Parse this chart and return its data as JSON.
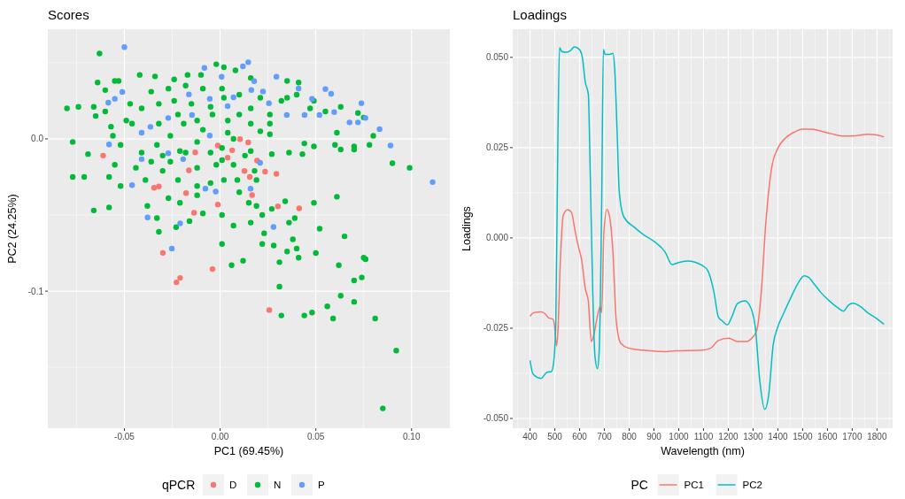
{
  "chart_data": [
    {
      "type": "scatter",
      "title": "Scores",
      "xlabel": "PC1 (69.45%)",
      "ylabel": "PC2 (24.25%)",
      "legend_title": "qPCR",
      "legend": "bottom",
      "grid": true,
      "marker": "circle",
      "xlim": [
        -0.09,
        0.12
      ],
      "ylim": [
        -0.19,
        0.072
      ],
      "xticks": [
        {
          "value": -0.05,
          "label": "-0.05"
        },
        {
          "value": 0,
          "label": "0.00"
        },
        {
          "value": 0.05,
          "label": "0.05"
        },
        {
          "value": 0.1,
          "label": "0.10"
        }
      ],
      "yticks": [
        {
          "value": -0.1,
          "label": "-0.1"
        },
        {
          "value": 0,
          "label": "0.0"
        }
      ],
      "series": [
        {
          "name": "D",
          "color": "#f8766d",
          "x": [
            -0.0611,
            -0.0299,
            -0.0228,
            -0.0209,
            -0.004,
            0.0257,
            0.0413,
            0.0302,
            0.0294,
            0.0235,
            0.0147,
            0.0104,
            -0.0012,
            0.0039,
            0.0063,
            0.0127,
            0.0155,
            0.0167,
            0.0193,
            -0.0136,
            -0.0178,
            -0.0345,
            -0.032,
            -0.013,
            -0.0163,
            -0.0012
          ],
          "values": [
            -0.011,
            -0.0749,
            -0.0942,
            -0.0913,
            -0.0855,
            -0.1124,
            -0.0456,
            -0.0443,
            -0.023,
            -0.0215,
            -0.0023,
            -0.0002,
            -0.0044,
            -0.0124,
            -0.0075,
            -0.0211,
            -0.025,
            -0.0369,
            -0.0143,
            -0.0485,
            -0.0356,
            -0.0321,
            -0.0313,
            -0.0089,
            -0.0207,
            -0.0431
          ]
        },
        {
          "name": "N",
          "color": "#00ba38",
          "x": [
            -0.063,
            -0.08,
            -0.074,
            -0.066,
            -0.077,
            -0.069,
            -0.077,
            -0.071,
            -0.066,
            -0.058,
            -0.058,
            -0.052,
            -0.055,
            -0.064,
            -0.06,
            -0.055,
            -0.053,
            -0.065,
            -0.06,
            -0.056,
            -0.057,
            -0.052,
            -0.049,
            -0.046,
            -0.042,
            -0.034,
            -0.024,
            -0.017,
            -0.01,
            -0.002,
            0.002,
            0.008,
            0.016,
            0.035,
            0.041,
            0.049,
            0.063,
            0.072,
            0.075,
            0.061,
            0.08,
            0.078,
            0.07,
            0.07,
            0.06,
            0.063,
            0.049,
            0.044,
            0.043,
            0.036,
            0.027,
            0.026,
            0.021,
            0.09,
            0.099,
            0.061,
            0.049,
            0.052,
            0.065,
            0.034,
            0.039,
            0.036,
            0.038,
            0.04,
            0.035,
            0.041,
            0.05,
            0.062,
            0.075,
            0.076,
            0.07,
            0.074,
            0.063,
            0.07,
            0.056,
            0.048,
            0.044,
            0.059,
            0.081,
            0.032,
            0.031,
            0.031,
            0.028,
            0.022,
            0.012,
            0.006,
            0.001,
            0.023,
            0.016,
            0.007,
            0.001,
            -0.009,
            -0.016,
            -0.023,
            -0.032,
            -0.033,
            -0.038,
            -0.027,
            -0.021,
            -0.012,
            -0.005,
            0.002,
            0.009,
            0.015,
            0.019,
            0.022,
            0.027,
            0.01,
            0.018,
            0.007,
            -0.002,
            -0.012,
            -0.022,
            -0.03,
            -0.039,
            -0.044,
            -0.041,
            -0.033,
            -0.026,
            -0.019,
            -0.012,
            -0.004,
            0.004,
            0.01,
            0.016,
            0.026,
            0.032,
            0.04,
            0.047,
            0.055,
            0.01,
            0.001,
            -0.009,
            -0.018,
            -0.027,
            -0.036,
            -0.032,
            -0.024,
            -0.015,
            -0.005,
            0.002,
            -0.012,
            -0.021,
            -0.03,
            -0.036,
            0.001,
            0.007,
            0.016,
            -0.005,
            0.016,
            0.026,
            0.035,
            0.021,
            -0.022,
            -0.032,
            -0.041,
            -0.047,
            0.085,
            0.092,
            0.001,
            -0.012,
            -0.018,
            -0.026,
            -0.009,
            0.004,
            0.013,
            0.019
          ],
          "values": [
            0.056,
            0.02,
            0.021,
            0.021,
            -0.002,
            -0.01,
            -0.025,
            -0.025,
            -0.047,
            -0.045,
            -0.025,
            -0.031,
            -0.017,
            0.037,
            0.032,
            0.038,
            0.038,
            0.015,
            0.018,
            0.002,
            0.008,
            -0.004,
            0.012,
            0.01,
            0.042,
            0.041,
            0.039,
            0.042,
            0.042,
            0.049,
            0.047,
            0.045,
            0.04,
            0.038,
            0.037,
            0.025,
            0.021,
            0.017,
            0.014,
            0.004,
            0.002,
            -0.004,
            -0.005,
            -0.007,
            -0.004,
            -0.007,
            -0.005,
            -0.003,
            -0.01,
            -0.009,
            -0.01,
            0.003,
            0.005,
            -0.016,
            -0.019,
            -0.038,
            -0.042,
            -0.059,
            -0.064,
            -0.041,
            -0.052,
            -0.055,
            -0.066,
            -0.072,
            -0.074,
            -0.078,
            -0.075,
            -0.083,
            -0.078,
            -0.079,
            -0.093,
            -0.091,
            -0.103,
            -0.107,
            -0.11,
            -0.114,
            -0.116,
            -0.118,
            -0.118,
            -0.116,
            -0.097,
            -0.081,
            -0.07,
            -0.069,
            -0.08,
            -0.083,
            -0.069,
            -0.062,
            -0.055,
            -0.057,
            -0.05,
            -0.049,
            -0.054,
            -0.058,
            -0.061,
            -0.052,
            -0.044,
            -0.039,
            -0.042,
            -0.037,
            -0.029,
            -0.027,
            -0.027,
            -0.042,
            -0.044,
            -0.05,
            -0.046,
            -0.035,
            -0.021,
            -0.017,
            -0.017,
            -0.019,
            -0.027,
            -0.021,
            -0.027,
            -0.019,
            -0.009,
            -0.004,
            0.002,
            0.01,
            0.012,
            0.016,
            0.012,
            0.016,
            0.02,
            0.016,
            0.025,
            0.029,
            0.02,
            0.018,
            0.029,
            0.033,
            0.033,
            0.035,
            0.033,
            0.031,
            0.023,
            0.025,
            0.023,
            0.021,
            0.027,
            -0.002,
            -0.008,
            -0.011,
            -0.015,
            -0.006,
            0.0,
            -0.008,
            -0.009,
            0.01,
            0.01,
            0.027,
            0.027,
            0.016,
            0.01,
            0.02,
            0.023,
            -0.177,
            -0.139,
            -0.014,
            -0.031,
            -0.009,
            -0.015,
            0.006,
            0.004,
            -0.011,
            -0.027
          ]
        },
        {
          "name": "P",
          "color": "#619cff",
          "x": [
            -0.05,
            0.0147,
            0.0119,
            -0.0082,
            0.0294,
            0.055,
            0.058,
            0.0738,
            0.0759,
            0.0676,
            0.0833,
            0.089,
            0.111,
            0.041,
            0.048,
            0.0519,
            0.0348,
            0.0255,
            0.0163,
            0.007,
            0.0039,
            -0.0054,
            -0.0163,
            -0.0147,
            -0.0271,
            -0.0364,
            -0.041,
            -0.055,
            -0.0584,
            -0.0511,
            -0.058,
            -0.046,
            -0.0379,
            -0.0252,
            -0.0209,
            -0.0077,
            -0.0023,
            0.0159,
            0.0279,
            0.0209,
            -0.0054,
            -0.0193,
            -0.0271,
            -0.041,
            0.0008,
            0.0178,
            0.0224,
            0.0441,
            0.0596,
            0.072
          ],
          "values": [
            0.0602,
            0.0503,
            0.0476,
            0.0466,
            0.0408,
            0.0327,
            0.0296,
            0.0234,
            0.0137,
            0.0108,
            0.0064,
            -0.0044,
            -0.0284,
            0.0331,
            0.0263,
            0.0157,
            0.0157,
            0.0234,
            0.0321,
            0.0273,
            0.0215,
            0.0263,
            0.0292,
            0.0157,
            0.0137,
            0.0079,
            0.0041,
            0.0263,
            0.0238,
            0.0308,
            -0.0037,
            -0.0304,
            -0.0516,
            -0.072,
            -0.0555,
            -0.0327,
            -0.0346,
            -0.0327,
            -0.0578,
            -0.0157,
            0.0021,
            -0.0133,
            -0.0095,
            -0.0133,
            0.0408,
            0.0379,
            0.0311,
            0.0157,
            0.0176,
            0.0108
          ]
        }
      ]
    },
    {
      "type": "line",
      "title": "Loadings",
      "xlabel": "Wavelength (nm)",
      "ylabel": "Loadings",
      "legend_title": "PC",
      "legend": "bottom",
      "grid": true,
      "line_style": "solid",
      "xlim": [
        330,
        1863
      ],
      "ylim": [
        -0.0527,
        0.0578
      ],
      "xticks": [
        400,
        500,
        600,
        700,
        800,
        900,
        1000,
        1100,
        1200,
        1300,
        1400,
        1500,
        1600,
        1700,
        1800
      ],
      "yticks": [
        {
          "value": -0.05,
          "label": "-0.050"
        },
        {
          "value": -0.025,
          "label": "-0.025"
        },
        {
          "value": 0,
          "label": "0.000"
        },
        {
          "value": 0.025,
          "label": "0.025"
        },
        {
          "value": 0.05,
          "label": "0.050"
        }
      ],
      "series": [
        {
          "name": "PC1",
          "color": "#f8766d",
          "x": [
            400,
            414,
            444,
            462,
            474,
            492,
            498,
            507,
            512,
            522,
            534,
            552,
            567,
            581,
            596,
            608,
            623,
            635,
            647,
            659,
            671,
            683,
            689,
            698,
            710,
            722,
            734,
            748,
            766,
            796,
            856,
            951,
            975,
            1094,
            1130,
            1160,
            1202,
            1237,
            1273,
            1297,
            1315,
            1333,
            1351,
            1375,
            1399,
            1428,
            1464,
            1500,
            1536,
            1572,
            1619,
            1667,
            1715,
            1762,
            1798,
            1828
          ],
          "values": [
            -0.0217,
            -0.0207,
            -0.0205,
            -0.0211,
            -0.0221,
            -0.0225,
            -0.0239,
            -0.0299,
            -0.0264,
            -0.0068,
            0.0063,
            0.0078,
            0.0071,
            0.0022,
            -0.0027,
            -0.006,
            -0.0141,
            -0.0174,
            -0.0287,
            -0.0264,
            -0.0219,
            -0.019,
            -0.0207,
            0.0014,
            0.0079,
            0.0055,
            -0.0035,
            -0.0231,
            -0.0292,
            -0.0305,
            -0.0311,
            -0.0315,
            -0.0313,
            -0.0311,
            -0.0305,
            -0.0284,
            -0.0278,
            -0.0287,
            -0.0287,
            -0.0276,
            -0.0256,
            -0.015,
            0.0038,
            0.0194,
            0.0247,
            0.0275,
            0.0292,
            0.0301,
            0.0301,
            0.0296,
            0.0288,
            0.0282,
            0.0283,
            0.0287,
            0.0285,
            0.028
          ]
        },
        {
          "name": "PC2",
          "color": "#00bfc4",
          "x": [
            400,
            412,
            444,
            468,
            486,
            495,
            504,
            512,
            519,
            528,
            546,
            563,
            579,
            599,
            611,
            623,
            635,
            643,
            653,
            662,
            672,
            679,
            689,
            696,
            703,
            719,
            734,
            742,
            751,
            760,
            778,
            820,
            856,
            903,
            945,
            973,
            999,
            1035,
            1094,
            1118,
            1142,
            1160,
            1178,
            1196,
            1214,
            1237,
            1267,
            1291,
            1309,
            1327,
            1347,
            1363,
            1381,
            1399,
            1422,
            1452,
            1482,
            1506,
            1524,
            1548,
            1572,
            1607,
            1643,
            1664,
            1685,
            1703,
            1733,
            1762,
            1798,
            1828
          ],
          "values": [
            -0.0339,
            -0.0377,
            -0.0389,
            -0.0372,
            -0.037,
            -0.0346,
            -0.0231,
            0.0259,
            0.0527,
            0.0516,
            0.0514,
            0.0519,
            0.0529,
            0.0522,
            0.05,
            0.0431,
            0.0398,
            0.0177,
            -0.015,
            -0.0329,
            -0.0362,
            -0.0313,
            0.0096,
            0.0522,
            0.0508,
            0.0508,
            0.0511,
            0.0463,
            0.03,
            0.0128,
            0.0059,
            0.003,
            0.001,
            -0.0011,
            -0.0039,
            -0.0074,
            -0.0068,
            -0.0064,
            -0.0076,
            -0.0092,
            -0.015,
            -0.0219,
            -0.0231,
            -0.0241,
            -0.0219,
            -0.0182,
            -0.0174,
            -0.0194,
            -0.0248,
            -0.0395,
            -0.0475,
            -0.0435,
            -0.0297,
            -0.0248,
            -0.0211,
            -0.0166,
            -0.0125,
            -0.0105,
            -0.0109,
            -0.0129,
            -0.015,
            -0.0174,
            -0.0194,
            -0.0203,
            -0.0186,
            -0.0181,
            -0.019,
            -0.0207,
            -0.0223,
            -0.0239
          ]
        }
      ]
    }
  ]
}
